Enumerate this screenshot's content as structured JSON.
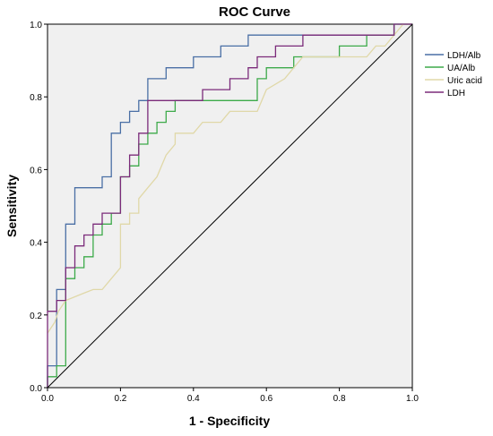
{
  "chart_data": {
    "type": "line",
    "title": "ROC Curve",
    "xlabel": "1 - Specificity",
    "ylabel": "Sensitivity",
    "xlim": [
      0,
      1
    ],
    "ylim": [
      0,
      1
    ],
    "x_ticks": [
      "0.0",
      "0.2",
      "0.4",
      "0.6",
      "0.8",
      "1.0"
    ],
    "y_ticks": [
      "0.0",
      "0.2",
      "0.4",
      "0.6",
      "0.8",
      "1.0"
    ],
    "grid": false,
    "legend_position": "right",
    "background": "#f0f0f0",
    "series": [
      {
        "name": "LDH/Alb",
        "color": "#4a6fa5",
        "points": [
          [
            0,
            0
          ],
          [
            0,
            0.06
          ],
          [
            0.025,
            0.06
          ],
          [
            0.025,
            0.27
          ],
          [
            0.05,
            0.27
          ],
          [
            0.05,
            0.45
          ],
          [
            0.075,
            0.45
          ],
          [
            0.075,
            0.55
          ],
          [
            0.15,
            0.55
          ],
          [
            0.15,
            0.58
          ],
          [
            0.175,
            0.58
          ],
          [
            0.175,
            0.7
          ],
          [
            0.2,
            0.7
          ],
          [
            0.2,
            0.73
          ],
          [
            0.225,
            0.73
          ],
          [
            0.225,
            0.76
          ],
          [
            0.25,
            0.76
          ],
          [
            0.25,
            0.79
          ],
          [
            0.275,
            0.79
          ],
          [
            0.275,
            0.85
          ],
          [
            0.325,
            0.85
          ],
          [
            0.325,
            0.88
          ],
          [
            0.4,
            0.88
          ],
          [
            0.4,
            0.91
          ],
          [
            0.475,
            0.91
          ],
          [
            0.475,
            0.94
          ],
          [
            0.55,
            0.94
          ],
          [
            0.55,
            0.97
          ],
          [
            0.95,
            0.97
          ],
          [
            0.95,
            1.0
          ],
          [
            1.0,
            1.0
          ]
        ]
      },
      {
        "name": "UA/Alb",
        "color": "#3daa4a",
        "points": [
          [
            0,
            0
          ],
          [
            0,
            0.03
          ],
          [
            0.025,
            0.03
          ],
          [
            0.025,
            0.06
          ],
          [
            0.05,
            0.06
          ],
          [
            0.05,
            0.3
          ],
          [
            0.075,
            0.3
          ],
          [
            0.075,
            0.33
          ],
          [
            0.1,
            0.33
          ],
          [
            0.1,
            0.36
          ],
          [
            0.125,
            0.36
          ],
          [
            0.125,
            0.42
          ],
          [
            0.15,
            0.42
          ],
          [
            0.15,
            0.45
          ],
          [
            0.175,
            0.45
          ],
          [
            0.175,
            0.48
          ],
          [
            0.2,
            0.48
          ],
          [
            0.2,
            0.58
          ],
          [
            0.225,
            0.58
          ],
          [
            0.225,
            0.61
          ],
          [
            0.25,
            0.61
          ],
          [
            0.25,
            0.67
          ],
          [
            0.275,
            0.67
          ],
          [
            0.275,
            0.7
          ],
          [
            0.3,
            0.7
          ],
          [
            0.3,
            0.73
          ],
          [
            0.325,
            0.73
          ],
          [
            0.325,
            0.76
          ],
          [
            0.35,
            0.76
          ],
          [
            0.35,
            0.79
          ],
          [
            0.575,
            0.79
          ],
          [
            0.575,
            0.85
          ],
          [
            0.6,
            0.85
          ],
          [
            0.6,
            0.88
          ],
          [
            0.675,
            0.88
          ],
          [
            0.675,
            0.91
          ],
          [
            0.8,
            0.91
          ],
          [
            0.8,
            0.94
          ],
          [
            0.875,
            0.94
          ],
          [
            0.875,
            0.97
          ],
          [
            0.95,
            0.97
          ],
          [
            0.95,
            1.0
          ],
          [
            1.0,
            1.0
          ]
        ]
      },
      {
        "name": "Uric acid",
        "color": "#e0d8a8",
        "points": [
          [
            0,
            0.15
          ],
          [
            0.02,
            0.18
          ],
          [
            0.03,
            0.21
          ],
          [
            0.05,
            0.24
          ],
          [
            0.075,
            0.25
          ],
          [
            0.1,
            0.26
          ],
          [
            0.125,
            0.27
          ],
          [
            0.15,
            0.27
          ],
          [
            0.175,
            0.3
          ],
          [
            0.2,
            0.33
          ],
          [
            0.2,
            0.45
          ],
          [
            0.225,
            0.45
          ],
          [
            0.225,
            0.48
          ],
          [
            0.25,
            0.48
          ],
          [
            0.25,
            0.52
          ],
          [
            0.275,
            0.55
          ],
          [
            0.3,
            0.58
          ],
          [
            0.325,
            0.64
          ],
          [
            0.35,
            0.67
          ],
          [
            0.35,
            0.7
          ],
          [
            0.4,
            0.7
          ],
          [
            0.425,
            0.73
          ],
          [
            0.475,
            0.73
          ],
          [
            0.5,
            0.76
          ],
          [
            0.575,
            0.76
          ],
          [
            0.6,
            0.82
          ],
          [
            0.65,
            0.85
          ],
          [
            0.675,
            0.88
          ],
          [
            0.7,
            0.91
          ],
          [
            0.875,
            0.91
          ],
          [
            0.9,
            0.94
          ],
          [
            0.925,
            0.94
          ],
          [
            0.95,
            0.97
          ],
          [
            0.975,
            1.0
          ],
          [
            1.0,
            1.0
          ]
        ]
      },
      {
        "name": "LDH",
        "color": "#7b2b7a",
        "points": [
          [
            0,
            0
          ],
          [
            0,
            0.21
          ],
          [
            0.025,
            0.21
          ],
          [
            0.025,
            0.24
          ],
          [
            0.05,
            0.24
          ],
          [
            0.05,
            0.33
          ],
          [
            0.075,
            0.33
          ],
          [
            0.075,
            0.39
          ],
          [
            0.1,
            0.39
          ],
          [
            0.1,
            0.42
          ],
          [
            0.125,
            0.42
          ],
          [
            0.125,
            0.45
          ],
          [
            0.15,
            0.45
          ],
          [
            0.15,
            0.48
          ],
          [
            0.2,
            0.48
          ],
          [
            0.2,
            0.58
          ],
          [
            0.225,
            0.58
          ],
          [
            0.225,
            0.64
          ],
          [
            0.25,
            0.64
          ],
          [
            0.25,
            0.7
          ],
          [
            0.275,
            0.7
          ],
          [
            0.275,
            0.79
          ],
          [
            0.425,
            0.79
          ],
          [
            0.425,
            0.82
          ],
          [
            0.5,
            0.82
          ],
          [
            0.5,
            0.85
          ],
          [
            0.55,
            0.85
          ],
          [
            0.55,
            0.88
          ],
          [
            0.575,
            0.88
          ],
          [
            0.575,
            0.91
          ],
          [
            0.625,
            0.91
          ],
          [
            0.625,
            0.94
          ],
          [
            0.7,
            0.94
          ],
          [
            0.7,
            0.97
          ],
          [
            0.95,
            0.97
          ],
          [
            0.95,
            1.0
          ],
          [
            1.0,
            1.0
          ]
        ]
      },
      {
        "name": "",
        "color": "#000000",
        "points": [
          [
            0,
            0
          ],
          [
            1,
            1
          ]
        ],
        "reference": true
      }
    ]
  }
}
